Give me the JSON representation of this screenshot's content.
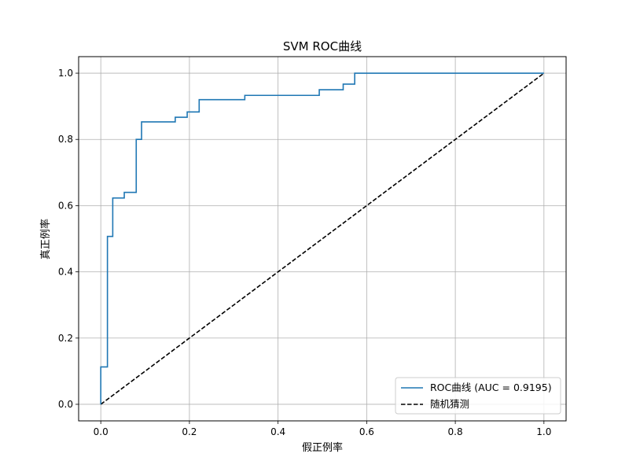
{
  "chart_data": {
    "type": "line",
    "title": "SVM ROC曲线",
    "xlabel": "假正例率",
    "ylabel": "真正例率",
    "xlim": [
      -0.05,
      1.05
    ],
    "ylim": [
      -0.05,
      1.05
    ],
    "xticks": [
      0.0,
      0.2,
      0.4,
      0.6,
      0.8,
      1.0
    ],
    "yticks": [
      0.0,
      0.2,
      0.4,
      0.6,
      0.8,
      1.0
    ],
    "xtick_labels": [
      "0.0",
      "0.2",
      "0.4",
      "0.6",
      "0.8",
      "1.0"
    ],
    "ytick_labels": [
      "0.0",
      "0.2",
      "0.4",
      "0.6",
      "0.8",
      "1.0"
    ],
    "grid": true,
    "legend_position": "bottom-right",
    "series": [
      {
        "name": "ROC曲线 (AUC = 0.9195)",
        "color": "#1f77b4",
        "style": "solid",
        "x": [
          0.0,
          0.0,
          0.015,
          0.015,
          0.027,
          0.027,
          0.053,
          0.053,
          0.08,
          0.08,
          0.092,
          0.092,
          0.168,
          0.168,
          0.195,
          0.195,
          0.222,
          0.222,
          0.325,
          0.325,
          0.493,
          0.493,
          0.547,
          0.547,
          0.573,
          0.573,
          1.0
        ],
        "y": [
          0.0,
          0.113,
          0.113,
          0.507,
          0.507,
          0.623,
          0.623,
          0.64,
          0.64,
          0.8,
          0.8,
          0.853,
          0.853,
          0.867,
          0.867,
          0.883,
          0.883,
          0.92,
          0.92,
          0.933,
          0.933,
          0.95,
          0.95,
          0.967,
          0.967,
          1.0,
          1.0
        ]
      },
      {
        "name": "随机猜测",
        "color": "#000000",
        "style": "dashed",
        "x": [
          0.0,
          1.0
        ],
        "y": [
          0.0,
          1.0
        ]
      }
    ]
  }
}
